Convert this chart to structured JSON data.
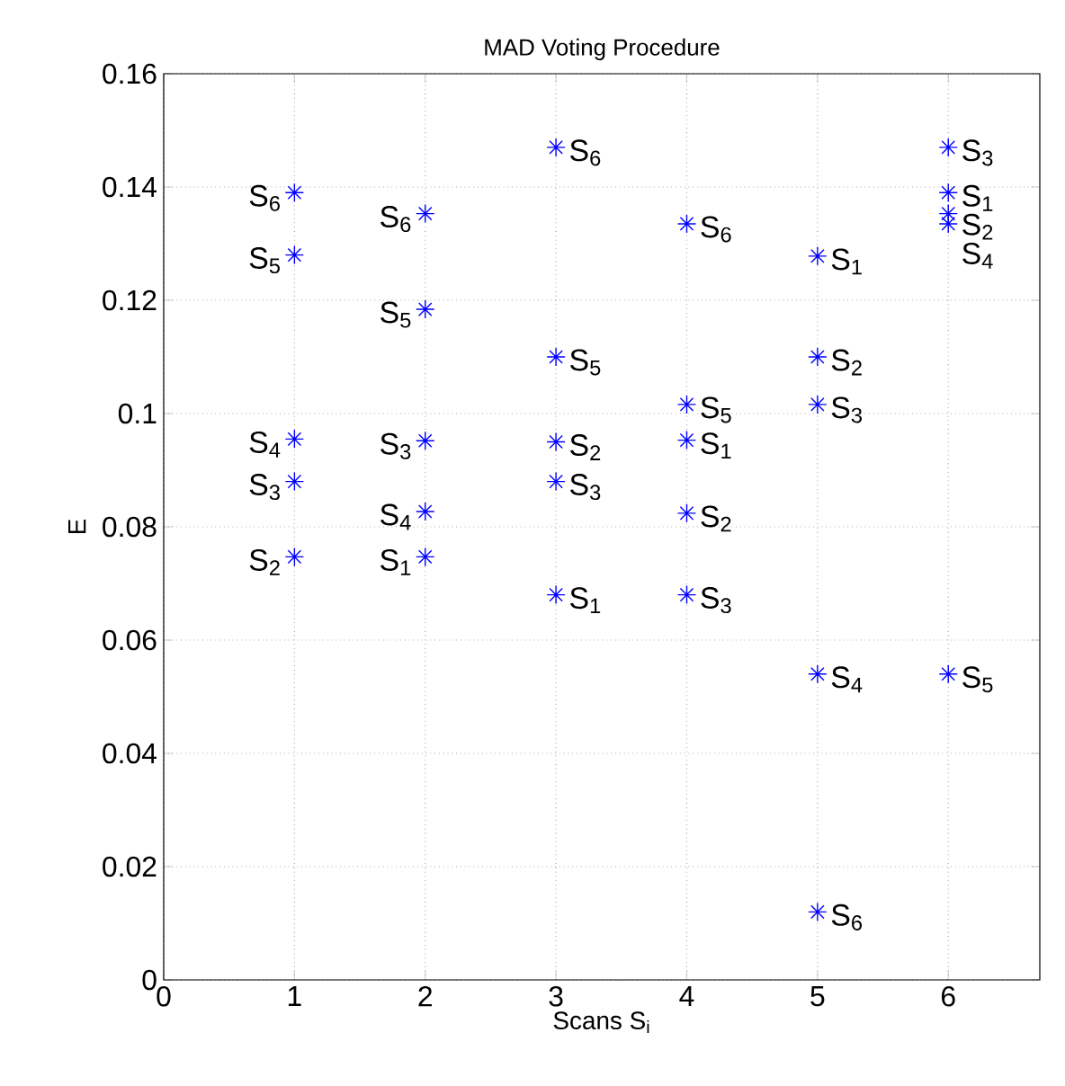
{
  "chart_data": {
    "type": "scatter",
    "title": "MAD Voting Procedure",
    "xlabel": "Scans S$_{i}$",
    "ylabel": "E",
    "series": [
      {
        "color": "#0000ff",
        "x": [
          1,
          1,
          1,
          1,
          1,
          2,
          2,
          2,
          2,
          2,
          3,
          3,
          3,
          3,
          3,
          4,
          4,
          4,
          4,
          4,
          5,
          5,
          5,
          5,
          5,
          6,
          6,
          6,
          6,
          6
        ],
        "values": [
          0.139,
          0.128,
          0.0955,
          0.088,
          0.0747,
          0.1353,
          0.1184,
          0.0952,
          0.0827,
          0.0747,
          0.147,
          0.11,
          0.095,
          0.088,
          0.068,
          0.1335,
          0.1016,
          0.0953,
          0.0824,
          0.068,
          0.1278,
          0.11,
          0.1016,
          0.054,
          0.012,
          0.147,
          0.139,
          0.1353,
          0.1335,
          0.054
        ]
      }
    ],
    "annotations": [
      {
        "text": "S$_{6}$",
        "x": 1,
        "y": 0.139
      },
      {
        "text": "S$_{5}$",
        "x": 1,
        "y": 0.128
      },
      {
        "text": "S$_{4}$",
        "x": 1,
        "y": 0.0955
      },
      {
        "text": "S$_{3}$",
        "x": 1,
        "y": 0.088
      },
      {
        "text": "S$_{2}$",
        "x": 1,
        "y": 0.0747
      },
      {
        "text": "S$_{6}$",
        "x": 2,
        "y": 0.1353
      },
      {
        "text": "S$_{5}$",
        "x": 2,
        "y": 0.1184
      },
      {
        "text": "S$_{3}$",
        "x": 2,
        "y": 0.0952
      },
      {
        "text": "S$_{4}$",
        "x": 2,
        "y": 0.0827
      },
      {
        "text": "S$_{1}$",
        "x": 2,
        "y": 0.0747
      },
      {
        "text": "S$_{6}$",
        "x": 3,
        "y": 0.147
      },
      {
        "text": "S$_{5}$",
        "x": 3,
        "y": 0.11
      },
      {
        "text": "S$_{2}$",
        "x": 3,
        "y": 0.095
      },
      {
        "text": "S$_{3}$",
        "x": 3,
        "y": 0.088
      },
      {
        "text": "S$_{1}$",
        "x": 3,
        "y": 0.068
      },
      {
        "text": "S$_{6}$",
        "x": 4,
        "y": 0.1335
      },
      {
        "text": "S$_{5}$",
        "x": 4,
        "y": 0.1016
      },
      {
        "text": "S$_{1}$",
        "x": 4,
        "y": 0.0953
      },
      {
        "text": "S$_{2}$",
        "x": 4,
        "y": 0.0824
      },
      {
        "text": "S$_{3}$",
        "x": 4,
        "y": 0.068
      },
      {
        "text": "S$_{1}$",
        "x": 5,
        "y": 0.1278
      },
      {
        "text": "S$_{2}$",
        "x": 5,
        "y": 0.11
      },
      {
        "text": "S$_{3}$",
        "x": 5,
        "y": 0.1016
      },
      {
        "text": "S$_{4}$",
        "x": 5,
        "y": 0.054
      },
      {
        "text": "S$_{6}$",
        "x": 5,
        "y": 0.012
      },
      {
        "text": "S$_{3}$",
        "x": 6,
        "y": 0.147
      },
      {
        "text": "S$_{1}$",
        "x": 6,
        "y": 0.139
      },
      {
        "text": "S$_{2}$",
        "x": 6,
        "y": 0.1353
      },
      {
        "text": "S$_{4}$",
        "x": 6,
        "y": 0.1335
      },
      {
        "text": "S$_{5}$",
        "x": 6,
        "y": 0.054
      }
    ],
    "xlim": [
      0,
      6.7
    ],
    "xticks": [
      0,
      1,
      2,
      3,
      4,
      5,
      6
    ],
    "ylim": [
      0,
      0.16
    ],
    "yticks": [
      0,
      0.02,
      0.04,
      0.06,
      0.08,
      0.1,
      0.12,
      0.14,
      0.16
    ],
    "grid": true,
    "marker": "cross"
  }
}
